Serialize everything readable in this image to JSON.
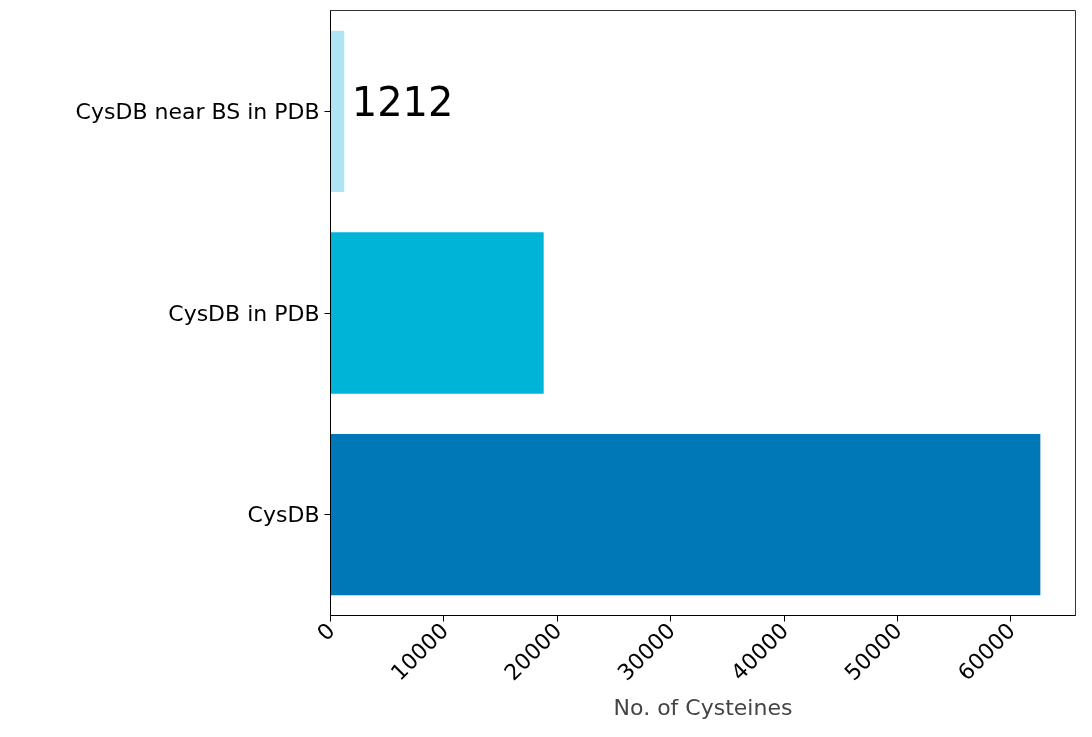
{
  "chart_data": {
    "type": "bar",
    "orientation": "horizontal",
    "xlabel": "No. of Cysteines",
    "categories": [
      "CysDB near BS in PDB",
      "CysDB in PDB",
      "CysDB"
    ],
    "values": [
      1212,
      18800,
      62600
    ],
    "colors": [
      "#ade5f3",
      "#00b4d8",
      "#0077b6"
    ],
    "value_labels": [
      "1212",
      null,
      null
    ],
    "xlim": [
      0,
      65700
    ],
    "xticks": [
      0,
      10000,
      20000,
      30000,
      40000,
      50000,
      60000
    ],
    "grid": false
  }
}
